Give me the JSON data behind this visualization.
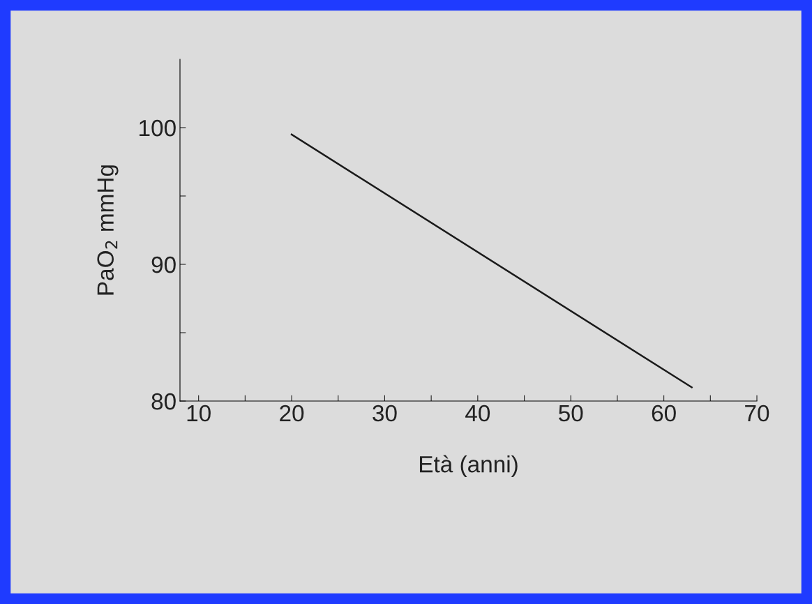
{
  "chart_data": {
    "type": "line",
    "xlabel": "Età (anni)",
    "ylabel": "PaO$_{2}$ mmHg",
    "x": [
      20,
      63
    ],
    "series": [
      {
        "color": "#1a1a1a",
        "values": [
          99.5,
          81
        ]
      }
    ],
    "xlim": [
      8,
      70
    ],
    "ylim": [
      80,
      105
    ],
    "xticks": [
      10,
      {
        "value": 15,
        "label": null
      },
      20,
      {
        "value": 25,
        "label": null
      },
      30,
      {
        "value": 35,
        "label": null
      },
      40,
      {
        "value": 45,
        "label": null
      },
      50,
      {
        "value": 55,
        "label": null
      },
      60,
      {
        "value": 65,
        "label": null
      },
      70
    ],
    "yticks": [
      80,
      {
        "value": 85,
        "label": null
      },
      90,
      {
        "value": 95,
        "label": null
      },
      100
    ],
    "grid": false,
    "marker": "none",
    "line_style": "solid"
  }
}
